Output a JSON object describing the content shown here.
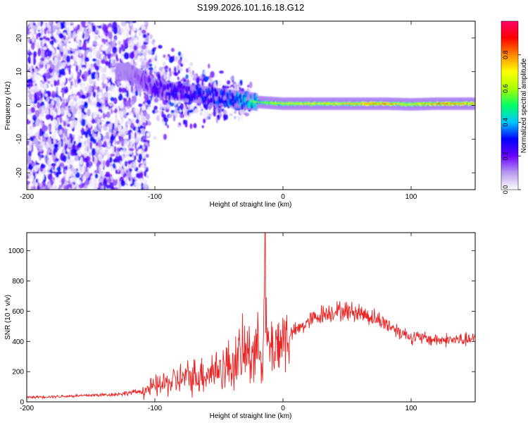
{
  "title": "S199.2026.101.16.18.G12",
  "chart_data": [
    {
      "type": "heatmap",
      "xlabel": "Height of straight line (km)",
      "ylabel": "Frequency (Hz)",
      "xlim": [
        -200,
        150
      ],
      "ylim": [
        -25,
        25
      ],
      "xticks": [
        -200,
        -100,
        0,
        100
      ],
      "yticks": [
        -20,
        -10,
        0,
        10,
        20
      ],
      "colorbar": {
        "label": "Normalized spectral amplitude",
        "range": [
          0,
          1
        ],
        "ticks": [
          "0.0",
          "0.2",
          "0.4",
          "0.6",
          "0.8"
        ],
        "ticks_values": [
          0,
          0.2,
          0.4,
          0.6,
          0.8
        ],
        "colors": [
          "#ffffff",
          "#b89cf0",
          "#6a00ff",
          "#0000ff",
          "#00c8ff",
          "#00ff66",
          "#aaff00",
          "#ffff00",
          "#ff8800",
          "#ff0000",
          "#ff0066"
        ]
      },
      "ridge": [
        {
          "x": -120,
          "y": 10,
          "amp": 0.15
        },
        {
          "x": -100,
          "y": 5,
          "amp": 0.3
        },
        {
          "x": -80,
          "y": 4,
          "amp": 0.35
        },
        {
          "x": -60,
          "y": 3,
          "amp": 0.4
        },
        {
          "x": -40,
          "y": 2,
          "amp": 0.45
        },
        {
          "x": -20,
          "y": 1,
          "amp": 0.6
        },
        {
          "x": 0,
          "y": 0.5,
          "amp": 0.7
        },
        {
          "x": 40,
          "y": 0.5,
          "amp": 0.75
        },
        {
          "x": 80,
          "y": 0.5,
          "amp": 0.85
        },
        {
          "x": 100,
          "y": 0.3,
          "amp": 0.7
        },
        {
          "x": 120,
          "y": 0.5,
          "amp": 0.85
        },
        {
          "x": 150,
          "y": 0.5,
          "amp": 0.8
        }
      ]
    },
    {
      "type": "line",
      "xlabel": "Height of straight line (km)",
      "ylabel": "SNR (10 * v/v)",
      "xlim": [
        -200,
        150
      ],
      "ylim": [
        0,
        1120
      ],
      "xticks": [
        -200,
        -100,
        0,
        100
      ],
      "yticks": [
        0,
        200,
        400,
        600,
        800,
        1000
      ],
      "color": "#ee2222",
      "series_trend": {
        "x": [
          -200,
          -160,
          -130,
          -110,
          -100,
          -80,
          -60,
          -40,
          -30,
          -20,
          -15,
          -10,
          0,
          10,
          20,
          30,
          40,
          50,
          60,
          70,
          80,
          90,
          100,
          110,
          120,
          130,
          150
        ],
        "y": [
          30,
          40,
          50,
          70,
          100,
          150,
          190,
          250,
          320,
          350,
          380,
          360,
          420,
          470,
          530,
          580,
          600,
          600,
          590,
          560,
          520,
          470,
          430,
          420,
          410,
          410,
          410
        ]
      },
      "spike": {
        "x": -14,
        "y": 1120
      }
    }
  ]
}
